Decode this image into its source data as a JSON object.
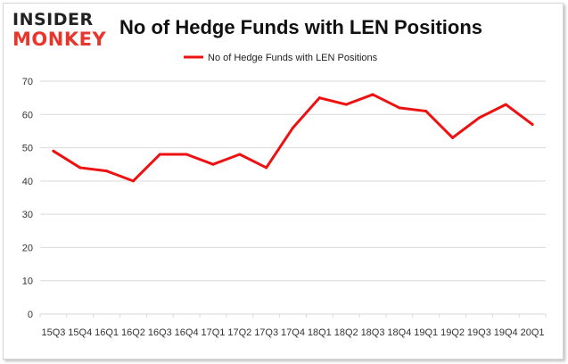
{
  "logo": {
    "line1": "INSIDER",
    "line2": "MONKEY"
  },
  "colors": {
    "line": "#ee1111",
    "grid": "#d9d9d9",
    "logo_red": "#e8362c"
  },
  "chart_data": {
    "type": "line",
    "title": "No of Hedge Funds with LEN Positions",
    "xlabel": "",
    "ylabel": "",
    "x": [
      "15Q3",
      "15Q4",
      "16Q1",
      "16Q2",
      "16Q3",
      "16Q4",
      "17Q1",
      "17Q2",
      "17Q3",
      "17Q4",
      "18Q1",
      "18Q2",
      "18Q3",
      "18Q4",
      "19Q1",
      "19Q2",
      "19Q3",
      "19Q4",
      "20Q1"
    ],
    "series": [
      {
        "name": "No of Hedge Funds with LEN Positions",
        "values": [
          49,
          44,
          43,
          40,
          48,
          48,
          45,
          48,
          44,
          56,
          65,
          63,
          66,
          62,
          61,
          53,
          59,
          63,
          57
        ]
      }
    ],
    "ylim": [
      0,
      70
    ],
    "yticks": [
      0,
      10,
      20,
      30,
      40,
      50,
      60,
      70
    ],
    "grid": true,
    "legend": "top-center"
  }
}
